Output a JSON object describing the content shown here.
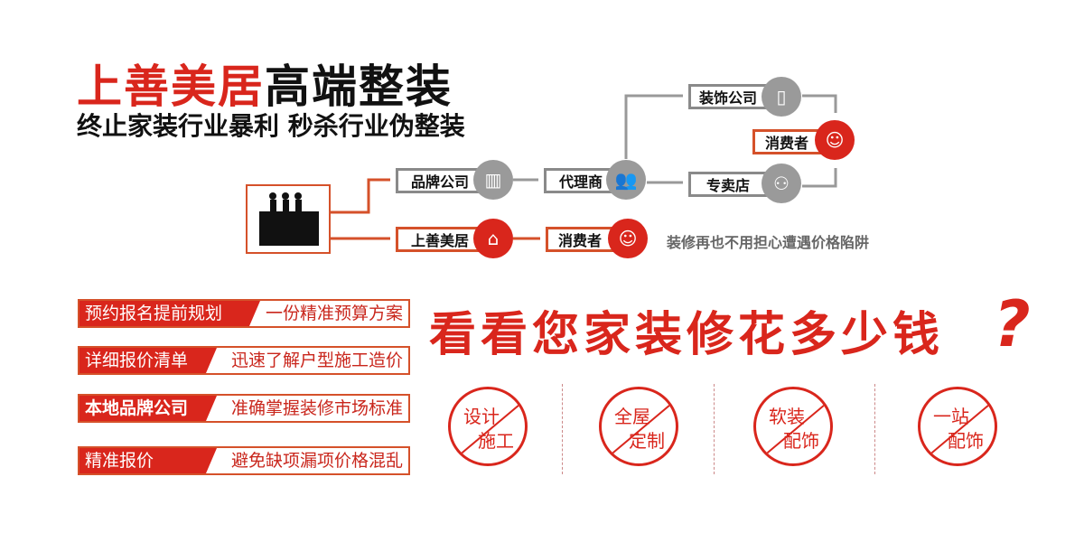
{
  "title": {
    "red": "上善美居",
    "black": "高端整装"
  },
  "subtitle": "终止家装行业暴利  秒杀行业伪整装",
  "flow": {
    "brand_company": "品牌公司",
    "agent": "代理商",
    "decor_company": "装饰公司",
    "consumer_top": "消费者",
    "store": "专卖店",
    "ssmj": "上善美居",
    "consumer_bottom": "消费者",
    "note": "装修再也不用担心遭遇价格陷阱"
  },
  "features": [
    {
      "left": "预约报名提前规划",
      "right": "一份精准预算方案"
    },
    {
      "left": "详细报价清单",
      "right": "迅速了解户型施工造价"
    },
    {
      "left": "本地品牌公司",
      "right": "准确掌握装修市场标准"
    },
    {
      "left": "精准报价",
      "right": "避免缺项漏项价格混乱"
    }
  ],
  "headline": "看看您家装修花多少钱",
  "headline_mark": "?",
  "stamps": [
    {
      "top": "设计",
      "bottom": "施工"
    },
    {
      "top": "全屋",
      "bottom": "定制"
    },
    {
      "top": "软装",
      "bottom": "配饰"
    },
    {
      "top": "一站",
      "bottom": "配饰"
    }
  ],
  "colors": {
    "red": "#d9261c",
    "orange": "#d5512a",
    "gray": "#8a8a8a"
  }
}
